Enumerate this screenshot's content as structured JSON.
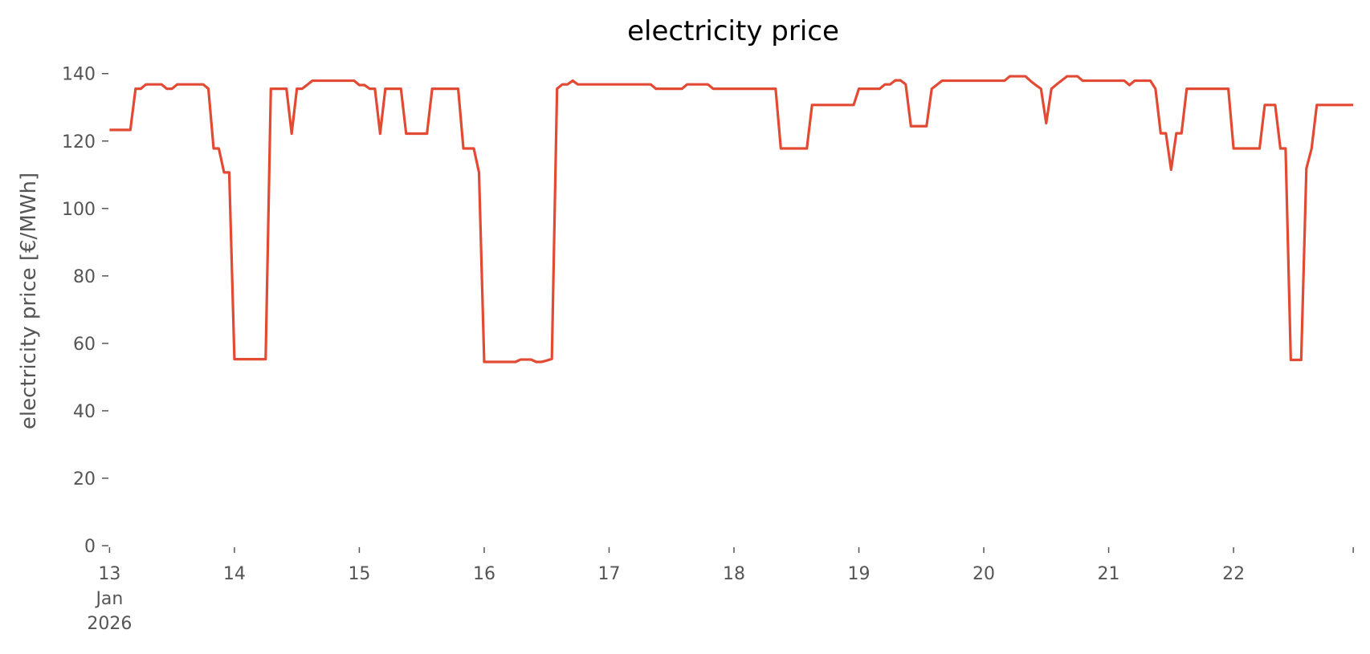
{
  "chart_data": {
    "type": "line",
    "title": "electricity price",
    "xlabel": "",
    "ylabel": "electricity price [€/MWh]",
    "ylim": [
      0,
      140
    ],
    "yticks": [
      "0",
      "20",
      "40",
      "60",
      "80",
      "100",
      "120",
      "140"
    ],
    "xlim": [
      "2026-01-13 00:00",
      "2026-01-22 23:00"
    ],
    "xticks": [
      {
        "date": "2026-01-13",
        "label": "13",
        "sub1": "Jan",
        "sub2": "2026"
      },
      {
        "date": "2026-01-14",
        "label": "14"
      },
      {
        "date": "2026-01-15",
        "label": "15"
      },
      {
        "date": "2026-01-16",
        "label": "16"
      },
      {
        "date": "2026-01-17",
        "label": "17"
      },
      {
        "date": "2026-01-18",
        "label": "18"
      },
      {
        "date": "2026-01-19",
        "label": "19"
      },
      {
        "date": "2026-01-20",
        "label": "20"
      },
      {
        "date": "2026-01-21",
        "label": "21"
      },
      {
        "date": "2026-01-22",
        "label": "22"
      }
    ],
    "grid": false,
    "line_color": "#E24A33",
    "series": [
      {
        "start": "2026-01-13 00:00",
        "interval": "1h",
        "values": [
          123.3,
          123.3,
          123.3,
          123.3,
          123.3,
          135.5,
          135.5,
          136.8,
          136.8,
          136.8,
          136.8,
          135.5,
          135.5,
          136.8,
          136.8,
          136.8,
          136.8,
          136.8,
          136.8,
          135.5,
          117.8,
          117.8,
          110.7,
          110.7,
          55.3,
          55.3,
          55.3,
          55.3,
          55.3,
          55.3,
          55.3,
          135.5,
          135.5,
          135.5,
          135.5,
          122.2,
          135.5,
          135.5,
          136.7,
          137.9,
          137.9,
          137.9,
          137.9,
          137.9,
          137.9,
          137.9,
          137.9,
          137.9,
          136.6,
          136.6,
          135.5,
          135.5,
          122.2,
          135.5,
          135.5,
          135.5,
          135.5,
          122.2,
          122.2,
          122.2,
          122.2,
          122.2,
          135.5,
          135.5,
          135.5,
          135.5,
          135.5,
          135.5,
          117.8,
          117.8,
          117.8,
          110.7,
          54.5,
          54.5,
          54.5,
          54.5,
          54.5,
          54.5,
          54.5,
          55.2,
          55.2,
          55.2,
          54.5,
          54.5,
          54.9,
          55.4,
          135.5,
          136.8,
          136.8,
          137.9,
          136.8,
          136.8,
          136.8,
          136.8,
          136.8,
          136.8,
          136.8,
          136.8,
          136.8,
          136.8,
          136.8,
          136.8,
          136.8,
          136.8,
          136.8,
          135.5,
          135.5,
          135.5,
          135.5,
          135.5,
          135.5,
          136.8,
          136.8,
          136.8,
          136.8,
          136.8,
          135.5,
          135.5,
          135.5,
          135.5,
          135.5,
          135.5,
          135.5,
          135.5,
          135.5,
          135.5,
          135.5,
          135.5,
          135.5,
          117.8,
          117.8,
          117.8,
          117.8,
          117.8,
          117.8,
          130.7,
          130.7,
          130.7,
          130.7,
          130.7,
          130.7,
          130.7,
          130.7,
          130.7,
          135.5,
          135.5,
          135.5,
          135.5,
          135.5,
          136.8,
          136.8,
          138.0,
          138.0,
          136.8,
          124.4,
          124.4,
          124.4,
          124.4,
          135.5,
          136.7,
          137.9,
          137.9,
          137.9,
          137.9,
          137.9,
          137.9,
          137.9,
          137.9,
          137.9,
          137.9,
          137.9,
          137.9,
          137.9,
          139.2,
          139.2,
          139.2,
          139.2,
          137.8,
          136.6,
          135.5,
          125.3,
          135.5,
          136.8,
          138.0,
          139.2,
          139.2,
          139.2,
          137.9,
          137.9,
          137.9,
          137.9,
          137.9,
          137.9,
          137.9,
          137.9,
          137.9,
          136.6,
          137.9,
          137.9,
          137.9,
          137.9,
          135.5,
          122.3,
          122.3,
          111.5,
          122.3,
          122.3,
          135.5,
          135.5,
          135.5,
          135.5,
          135.5,
          135.5,
          135.5,
          135.5,
          135.5,
          117.8,
          117.8,
          117.8,
          117.8,
          117.8,
          117.8,
          130.7,
          130.7,
          130.7,
          117.8,
          117.8,
          55.1,
          55.1,
          55.1,
          111.9,
          117.8,
          130.7,
          130.7,
          130.7,
          130.7,
          130.7,
          130.7,
          130.7,
          130.7
        ]
      }
    ]
  }
}
